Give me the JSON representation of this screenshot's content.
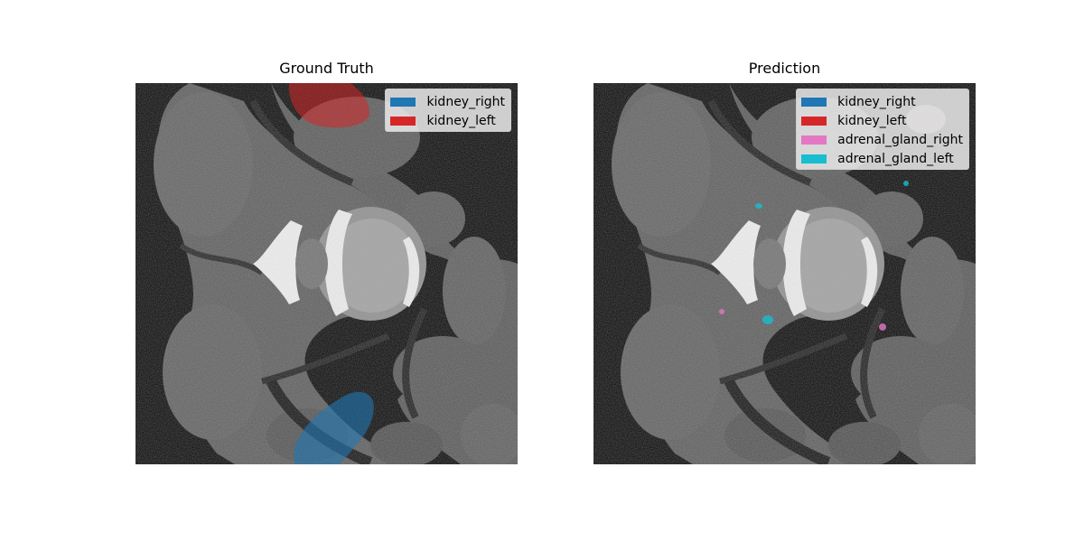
{
  "panels": [
    {
      "title": "Ground Truth",
      "legend": [
        {
          "label": "kidney_right",
          "color": "#1f77b4"
        },
        {
          "label": "kidney_left",
          "color": "#d62728"
        }
      ]
    },
    {
      "title": "Prediction",
      "legend": [
        {
          "label": "kidney_right",
          "color": "#1f77b4"
        },
        {
          "label": "kidney_left",
          "color": "#d62728"
        },
        {
          "label": "adrenal_gland_right",
          "color": "#e377c2"
        },
        {
          "label": "adrenal_gland_left",
          "color": "#17becf"
        }
      ]
    }
  ]
}
